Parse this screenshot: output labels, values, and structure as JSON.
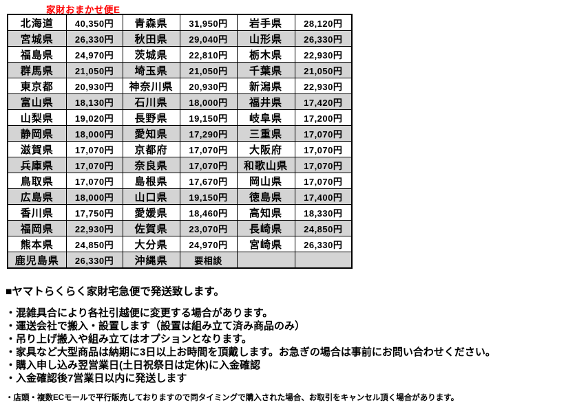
{
  "title": "家財おまかせ便E",
  "colors": {
    "title_red": "#ff0000",
    "row_alt_gray": "#d4d4d4",
    "border_black": "#000000",
    "background": "#ffffff"
  },
  "table": {
    "columns": [
      "prefecture",
      "price",
      "prefecture",
      "price",
      "prefecture",
      "price"
    ],
    "rows": [
      [
        "北海道",
        "40,350円",
        "青森県",
        "31,950円",
        "岩手県",
        "28,120円"
      ],
      [
        "宮城県",
        "26,330円",
        "秋田県",
        "29,040円",
        "山形県",
        "26,330円"
      ],
      [
        "福島県",
        "24,970円",
        "茨城県",
        "22,810円",
        "栃木県",
        "22,930円"
      ],
      [
        "群馬県",
        "21,050円",
        "埼玉県",
        "21,050円",
        "千葉県",
        "21,050円"
      ],
      [
        "東京都",
        "20,930円",
        "神奈川県",
        "20,930円",
        "新潟県",
        "22,930円"
      ],
      [
        "富山県",
        "18,130円",
        "石川県",
        "18,000円",
        "福井県",
        "17,420円"
      ],
      [
        "山梨県",
        "19,020円",
        "長野県",
        "19,150円",
        "岐阜県",
        "17,200円"
      ],
      [
        "静岡県",
        "18,000円",
        "愛知県",
        "17,290円",
        "三重県",
        "17,070円"
      ],
      [
        "滋賀県",
        "17,070円",
        "京都府",
        "17,070円",
        "大阪府",
        "17,070円"
      ],
      [
        "兵庫県",
        "17,070円",
        "奈良県",
        "17,070円",
        "和歌山県",
        "17,070円"
      ],
      [
        "鳥取県",
        "17,070円",
        "島根県",
        "17,670円",
        "岡山県",
        "17,070円"
      ],
      [
        "広島県",
        "18,000円",
        "山口県",
        "19,150円",
        "徳島県",
        "17,400円"
      ],
      [
        "香川県",
        "17,750円",
        "愛媛県",
        "18,460円",
        "高知県",
        "18,330円"
      ],
      [
        "福岡県",
        "22,930円",
        "佐賀県",
        "23,070円",
        "長崎県",
        "24,850円"
      ],
      [
        "熊本県",
        "24,850円",
        "大分県",
        "24,970円",
        "宮崎県",
        "26,330円"
      ],
      [
        "鹿児島県",
        "26,330円",
        "沖縄県",
        "要相談",
        "",
        ""
      ]
    ],
    "left_align_cell": {
      "row": 15,
      "col": 3
    }
  },
  "notes": {
    "heading": "■ヤマトらくらく家財宅急便で発送致します。",
    "bullets": [
      "・混雑具合により各社引越便に変更する場合があります。",
      "・運送会社で搬入・設置します（設置は組み立て済み商品のみ）",
      "・吊り上げ搬入や組み立てはオプションとなります。",
      "・家具など大型商品は納期に3日以上お時間を頂戴します。お急ぎの場合は事前にお問い合わせください。",
      "・購入申し込み翌営業日(土日祝祭日は定休)に入金確認",
      "・入金確認後7営業日以内に発送します"
    ],
    "small_note": "・店頭・複数ECモールで平行販売しておりますので同タイミングで購入された場合、お取引をキャンセル頂く場合があります。"
  }
}
